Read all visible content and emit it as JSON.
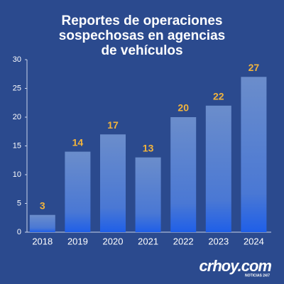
{
  "chart_data": {
    "type": "bar",
    "title": [
      "Reportes de operaciones",
      "sospechosas en agencias",
      "de vehículos"
    ],
    "categories": [
      "2018",
      "2019",
      "2020",
      "2021",
      "2022",
      "2023",
      "2024"
    ],
    "values": [
      3,
      14,
      17,
      13,
      20,
      22,
      27
    ],
    "color": "#5a80c8",
    "value_label_color": "#f2b43c",
    "ylim": [
      0,
      30
    ],
    "yticks": [
      0,
      5,
      10,
      15,
      20,
      25,
      30
    ],
    "grid": false
  },
  "branding": {
    "name": "crhoy.com",
    "tagline": "NOTICIAS 24/7"
  }
}
